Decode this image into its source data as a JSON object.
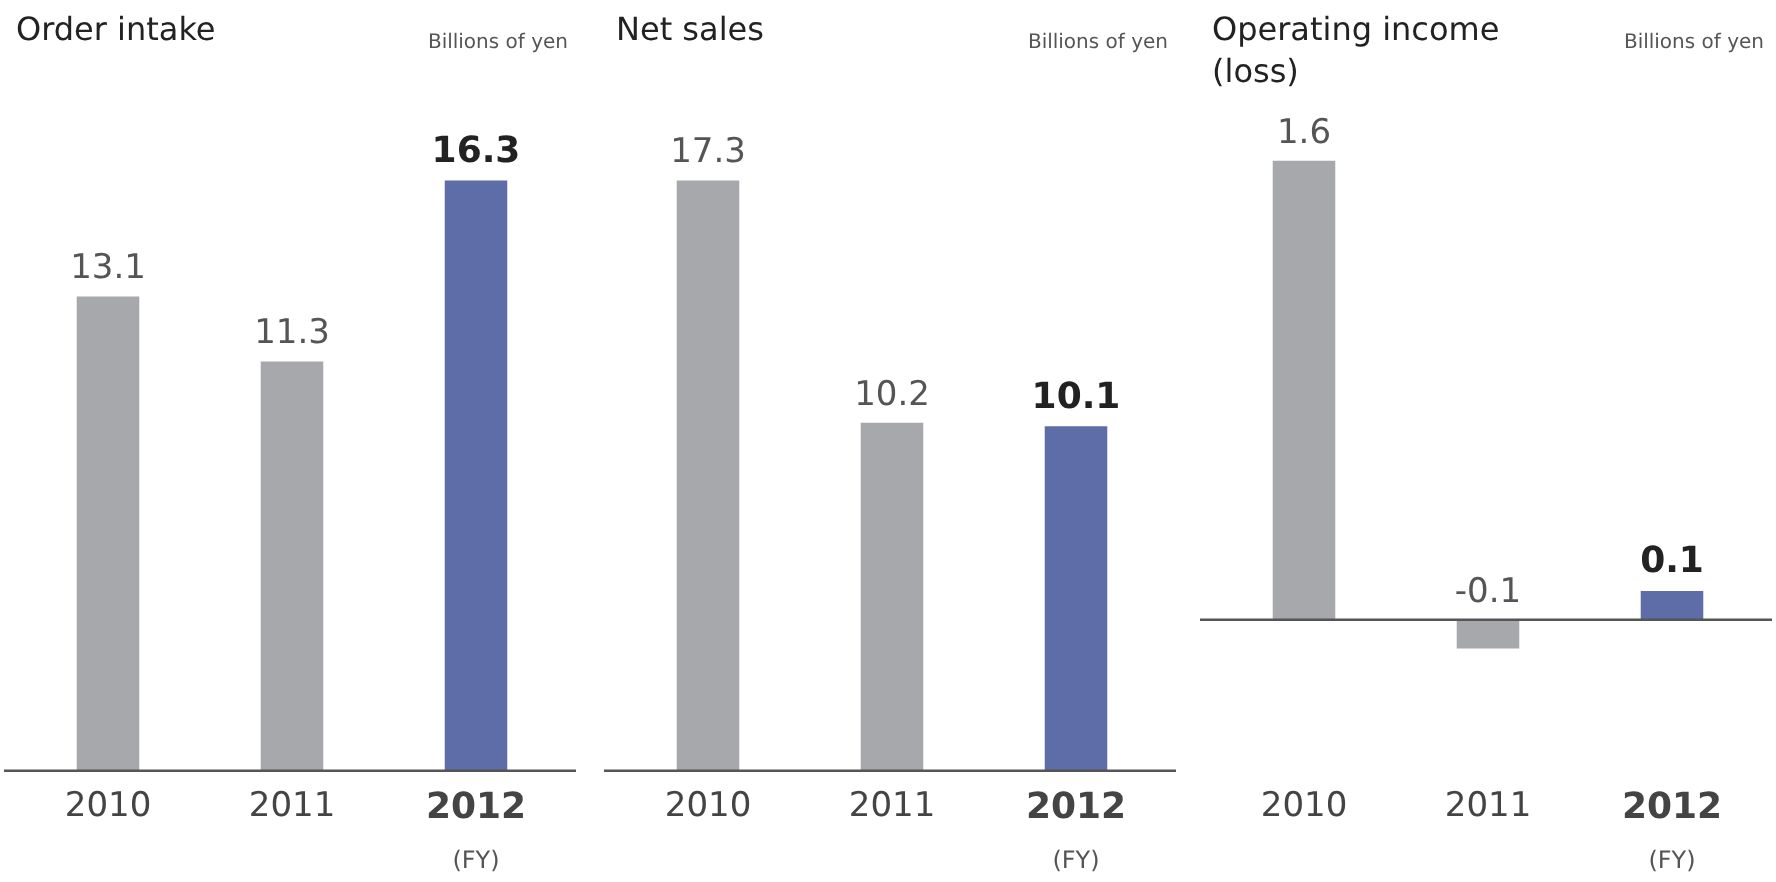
{
  "chart_data": [
    {
      "type": "bar",
      "title": "Order intake",
      "ylabel": "Billions of yen",
      "categories": [
        "2010",
        "2011",
        "2012"
      ],
      "values": [
        13.1,
        11.3,
        16.3
      ],
      "colors": [
        "#a7a8ab",
        "#a7a8ab",
        "#5e6ca7"
      ],
      "data_labels": true,
      "annotations": [
        "(FY)"
      ]
    },
    {
      "type": "bar",
      "title": "Net sales",
      "ylabel": "Billions of yen",
      "categories": [
        "2010",
        "2011",
        "2012"
      ],
      "values": [
        17.3,
        10.2,
        10.1
      ],
      "colors": [
        "#a7a8ab",
        "#a7a8ab",
        "#5e6ca7"
      ],
      "data_labels": true,
      "annotations": [
        "(FY)"
      ]
    },
    {
      "type": "bar",
      "title": "Operating income\n(loss)",
      "ylabel": "Billions of yen",
      "categories": [
        "2010",
        "2011",
        "2012"
      ],
      "values": [
        1.6,
        -0.1,
        0.1
      ],
      "colors": [
        "#a7a8ab",
        "#a7a8ab",
        "#5e6ca7"
      ],
      "data_labels": true,
      "annotations": [
        "(FY)"
      ]
    }
  ]
}
